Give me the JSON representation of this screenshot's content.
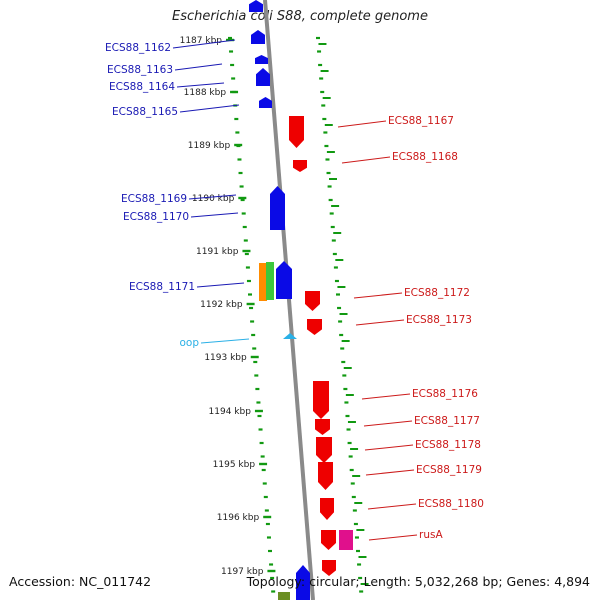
{
  "title": "Escherichia coli S88, complete genome",
  "footer": {
    "accession": "Accession: NC_011742",
    "summary": "Topology: circular; Length: 5,032,268 bp; Genes: 4,894"
  },
  "colors": {
    "plus_strand": "#0a0ae6",
    "minus_strand": "#ee0000",
    "label_plus": "#1a1ab4",
    "label_minus": "#cc1a1a",
    "origin": "#2ab0e6",
    "pink_gene": "#e0108c",
    "orange_gene": "#ff8c00",
    "green_gene": "#3cc83c",
    "olive_gene": "#6b8e23",
    "backbone": "#8a8a8a",
    "tick": "#119911"
  },
  "scale": {
    "unit": "kbp",
    "ticks": [
      {
        "label": "1187 kbp"
      },
      {
        "label": "1188 kbp"
      },
      {
        "label": "1189 kbp"
      },
      {
        "label": "1190 kbp"
      },
      {
        "label": "1191 kbp"
      },
      {
        "label": "1192 kbp"
      },
      {
        "label": "1193 kbp"
      },
      {
        "label": "1194 kbp"
      },
      {
        "label": "1195 kbp"
      },
      {
        "label": "1196 kbp"
      },
      {
        "label": "1197 kbp"
      }
    ]
  },
  "genes_plus": [
    {
      "label": "ECS88_1162"
    },
    {
      "label": "ECS88_1163"
    },
    {
      "label": "ECS88_1164"
    },
    {
      "label": "ECS88_1165"
    },
    {
      "label": "ECS88_1169"
    },
    {
      "label": "ECS88_1170"
    },
    {
      "label": "ECS88_1171"
    }
  ],
  "genes_minus": [
    {
      "label": "ECS88_1167"
    },
    {
      "label": "ECS88_1168"
    },
    {
      "label": "ECS88_1172"
    },
    {
      "label": "ECS88_1173"
    },
    {
      "label": "ECS88_1176"
    },
    {
      "label": "ECS88_1177"
    },
    {
      "label": "ECS88_1178"
    },
    {
      "label": "ECS88_1179"
    },
    {
      "label": "ECS88_1180"
    },
    {
      "label": "rusA"
    }
  ],
  "origin": {
    "label": "oop"
  }
}
